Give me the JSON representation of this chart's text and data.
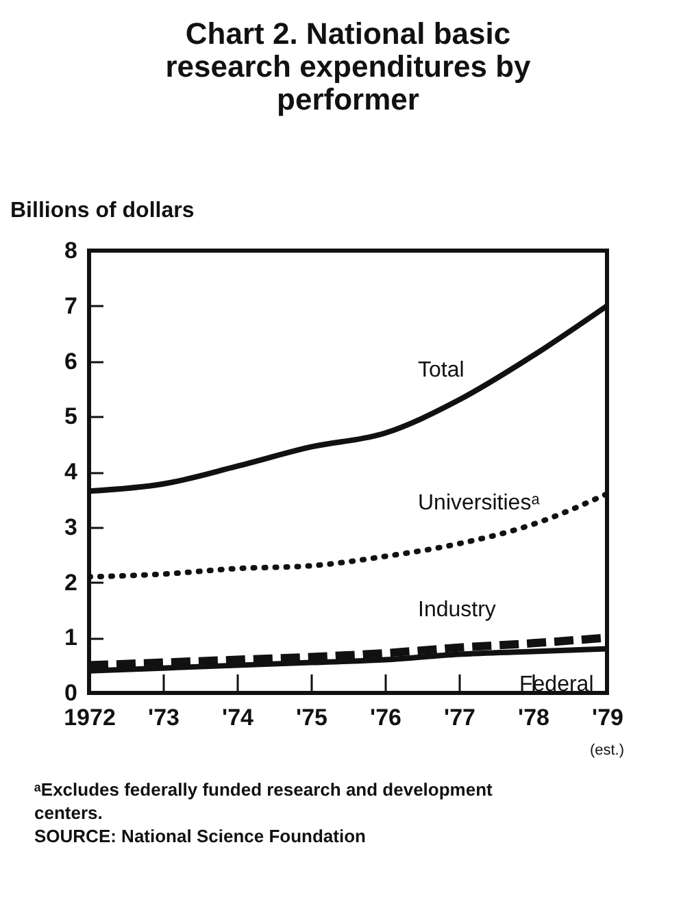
{
  "chart_data": {
    "type": "line",
    "title": "Chart 2. National basic research expenditures by performer",
    "ylabel": "Billions of dollars",
    "x": [
      1972,
      1973,
      1974,
      1975,
      1976,
      1977,
      1978,
      1979
    ],
    "series": [
      {
        "name": "Total",
        "color": "#111111",
        "line_style": "solid",
        "values": [
          3.65,
          3.78,
          4.1,
          4.45,
          4.7,
          5.3,
          6.1,
          7.0
        ]
      },
      {
        "name": "Universitiesᵃ",
        "color": "#111111",
        "line_style": "dotted",
        "values": [
          2.1,
          2.15,
          2.25,
          2.3,
          2.47,
          2.7,
          3.05,
          3.6
        ]
      },
      {
        "name": "Industry",
        "color": "#111111",
        "line_style": "dashed",
        "values": [
          0.5,
          0.55,
          0.6,
          0.65,
          0.72,
          0.82,
          0.9,
          1.0
        ]
      },
      {
        "name": "Federal",
        "color": "#111111",
        "line_style": "solid",
        "values": [
          0.4,
          0.45,
          0.5,
          0.55,
          0.6,
          0.7,
          0.75,
          0.8
        ]
      }
    ],
    "xlim": [
      1972,
      1979
    ],
    "xticks": [
      1972,
      {
        "value": 1973,
        "label": "'73"
      },
      {
        "value": 1974,
        "label": "'74"
      },
      {
        "value": 1975,
        "label": "'75"
      },
      {
        "value": 1976,
        "label": "'76"
      },
      {
        "value": 1977,
        "label": "'77"
      },
      {
        "value": 1978,
        "label": "'78"
      },
      {
        "value": 1979,
        "label": "'79"
      }
    ],
    "ylim": [
      0,
      8
    ],
    "yticks": [
      0,
      1,
      2,
      3,
      4,
      5,
      6,
      7,
      8
    ],
    "grid": false,
    "annotations": [
      "(est.)",
      "ᵃExcludes federally funded research and development centers.",
      "SOURCE: National Science Foundation"
    ]
  }
}
